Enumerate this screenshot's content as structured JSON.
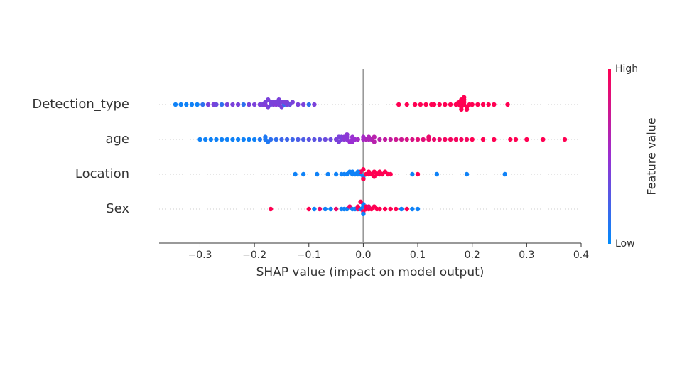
{
  "chart_data": {
    "type": "beeswarm",
    "xlabel": "SHAP value (impact on model output)",
    "xlim": [
      -0.375,
      0.4
    ],
    "xticks": [
      {
        "value": -0.3,
        "label": "−0.3"
      },
      {
        "value": -0.2,
        "label": "−0.2"
      },
      {
        "value": -0.1,
        "label": "−0.1"
      },
      {
        "value": 0,
        "label": "0.0"
      },
      0.1,
      0.2,
      0.3,
      0.4
    ],
    "categories": [
      "Detection_type",
      "age",
      "Location",
      "Sex"
    ],
    "colorbar": {
      "label": "Feature value",
      "high": "High",
      "low": "Low",
      "colors": [
        "#008bfb",
        "#9a2fd2",
        "#ff0052"
      ]
    },
    "points": [
      {
        "x": [
          -0.345,
          -0.335,
          -0.325,
          -0.315,
          -0.305,
          -0.295,
          -0.285,
          -0.275,
          -0.27,
          -0.26,
          -0.25,
          -0.24,
          -0.23,
          -0.22,
          -0.21,
          -0.2,
          -0.19,
          -0.185,
          -0.18,
          -0.18,
          -0.175,
          -0.17,
          -0.17,
          -0.165,
          -0.16,
          -0.155,
          -0.15,
          -0.15,
          -0.145,
          -0.14,
          -0.14,
          -0.135,
          -0.13,
          -0.12,
          -0.11,
          -0.1,
          -0.09,
          0.065,
          0.08,
          0.095,
          0.105,
          0.115,
          0.125,
          0.13,
          0.14,
          0.15,
          0.16,
          0.17,
          0.175,
          0.18,
          0.18,
          0.185,
          0.185,
          0.19,
          0.195,
          0.2,
          0.21,
          0.22,
          0.23,
          0.24,
          0.265,
          -0.175,
          -0.165,
          -0.155,
          -0.145,
          -0.16,
          0.18,
          0.185,
          0.175,
          0.19,
          0.18,
          0.185,
          0.18
        ],
        "feature_values": [
          0.05,
          0.05,
          0.05,
          0.05,
          0.05,
          0.15,
          0.4,
          0.4,
          0.35,
          0.15,
          0.4,
          0.4,
          0.4,
          0.15,
          0.4,
          0.4,
          0.4,
          0.4,
          0.45,
          0.4,
          0.4,
          0.35,
          0.4,
          0.4,
          0.45,
          0.4,
          0.4,
          0.4,
          0.15,
          0.4,
          0.4,
          0.35,
          0.4,
          0.4,
          0.4,
          0.15,
          0.4,
          1,
          1,
          1,
          1,
          1,
          1,
          1,
          1,
          1,
          1,
          1,
          1,
          1,
          1,
          1,
          1,
          1,
          1,
          1,
          1,
          1,
          1,
          1,
          1,
          0.4,
          0.4,
          0.4,
          0.4,
          0.4,
          1,
          1,
          1,
          1,
          1,
          1,
          1
        ]
      },
      {
        "x": [
          -0.3,
          -0.29,
          -0.28,
          -0.27,
          -0.26,
          -0.25,
          -0.24,
          -0.23,
          -0.22,
          -0.21,
          -0.2,
          -0.19,
          -0.18,
          -0.18,
          -0.175,
          -0.17,
          -0.16,
          -0.15,
          -0.14,
          -0.13,
          -0.12,
          -0.11,
          -0.1,
          -0.09,
          -0.08,
          -0.07,
          -0.06,
          -0.05,
          -0.045,
          -0.04,
          -0.035,
          -0.03,
          -0.03,
          -0.025,
          -0.02,
          -0.02,
          -0.015,
          -0.01,
          0.0,
          0.005,
          0.01,
          0.015,
          0.02,
          0.03,
          0.04,
          0.05,
          0.06,
          0.07,
          0.08,
          0.09,
          0.1,
          0.11,
          0.12,
          0.12,
          0.13,
          0.14,
          0.15,
          0.16,
          0.17,
          0.18,
          0.19,
          0.2,
          0.22,
          0.24,
          0.27,
          0.28,
          0.3,
          0.33,
          0.37,
          -0.04,
          -0.03,
          -0.02,
          -0.045,
          -0.035,
          0.0,
          0.01,
          0.02
        ],
        "feature_values": [
          0.05,
          0.05,
          0.05,
          0.05,
          0.05,
          0.05,
          0.05,
          0.05,
          0.05,
          0.05,
          0.05,
          0.1,
          0.1,
          0.1,
          0.1,
          0.15,
          0.15,
          0.2,
          0.2,
          0.2,
          0.25,
          0.25,
          0.3,
          0.3,
          0.3,
          0.35,
          0.35,
          0.4,
          0.4,
          0.4,
          0.45,
          0.45,
          0.45,
          0.5,
          0.5,
          0.5,
          0.5,
          0.55,
          0.55,
          0.6,
          0.6,
          0.6,
          0.65,
          0.65,
          0.7,
          0.7,
          0.75,
          0.75,
          0.8,
          0.8,
          0.85,
          0.85,
          0.9,
          0.9,
          0.9,
          0.9,
          0.95,
          0.95,
          0.95,
          0.95,
          0.95,
          1,
          1,
          1,
          1,
          1,
          1,
          1,
          1,
          0.4,
          0.45,
          0.5,
          0.4,
          0.45,
          0.55,
          0.6,
          0.65
        ]
      },
      {
        "x": [
          -0.125,
          -0.11,
          -0.085,
          -0.065,
          -0.05,
          -0.04,
          -0.035,
          -0.03,
          -0.025,
          -0.02,
          -0.015,
          -0.01,
          -0.005,
          -0.005,
          0.0,
          0.0,
          0.005,
          0.01,
          0.015,
          0.02,
          0.025,
          0.03,
          0.035,
          0.04,
          0.045,
          0.05,
          0.09,
          0.1,
          0.135,
          0.19,
          0.26,
          -0.02,
          -0.01,
          0.0,
          0.01,
          0.02,
          0.03
        ],
        "feature_values": [
          0.05,
          0.05,
          0.05,
          0.05,
          0.05,
          0.05,
          0.05,
          0.05,
          0.05,
          0.05,
          0.05,
          0.05,
          0.05,
          0.9,
          0.05,
          1,
          1,
          1,
          1,
          1,
          1,
          1,
          1,
          1,
          1,
          1,
          0.05,
          1,
          0.05,
          0.05,
          0.05,
          0.05,
          0.05,
          1,
          1,
          1,
          1
        ]
      },
      {
        "x": [
          -0.17,
          -0.1,
          -0.09,
          -0.08,
          -0.07,
          -0.06,
          -0.05,
          -0.04,
          -0.035,
          -0.03,
          -0.025,
          -0.02,
          -0.015,
          -0.01,
          -0.005,
          0.0,
          0.0,
          0.005,
          0.01,
          0.015,
          0.02,
          0.025,
          0.03,
          0.04,
          0.05,
          0.06,
          0.07,
          0.08,
          0.09,
          0.1,
          -0.01,
          0.0,
          0.005,
          0.01,
          0.0,
          -0.005
        ],
        "feature_values": [
          1,
          1,
          0.05,
          0.9,
          0.05,
          0.05,
          0.9,
          0.05,
          0.05,
          0.05,
          0.9,
          0.05,
          0.05,
          0.9,
          0.05,
          0.05,
          1,
          1,
          1,
          1,
          1,
          1,
          1,
          1,
          1,
          1,
          0.05,
          1,
          0.05,
          0.05,
          1,
          0.05,
          1,
          0.9,
          0.05,
          1
        ]
      }
    ]
  }
}
